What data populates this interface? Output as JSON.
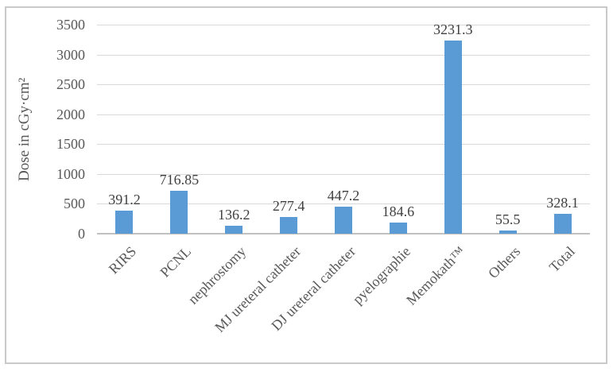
{
  "figure": {
    "background_color": "#ffffff",
    "frame_border_color": "#c9c9c9"
  },
  "chart_data": {
    "type": "bar",
    "title": "",
    "xlabel": "",
    "ylabel": "Dose in cGy·cm²",
    "categories": [
      "RIRS",
      "PCNL",
      "nephrostomy",
      "MJ ureteral catheter",
      "DJ ureteral catheter",
      "pyelographie",
      "Memokath™",
      "Others",
      "Total"
    ],
    "values": [
      391.2,
      716.85,
      136.2,
      277.4,
      447.2,
      184.6,
      3231.3,
      55.5,
      328.1
    ],
    "value_labels": [
      "391.2",
      "716.85",
      "136.2",
      "277.4",
      "447.2",
      "184.6",
      "3231.3",
      "55.5",
      "328.1"
    ],
    "ylim": [
      0,
      3500
    ],
    "yticks": [
      0,
      500,
      1000,
      1500,
      2000,
      2500,
      3000,
      3500
    ],
    "grid": true,
    "legend": "none",
    "x_label_rotation_deg": 45,
    "bar_color": "#5b9bd5",
    "tick_text_color": "#595959",
    "value_label_color": "#3f3f3f",
    "gridline_color": "#d9d9d9",
    "axis_line_color": "#c1c1c1"
  }
}
